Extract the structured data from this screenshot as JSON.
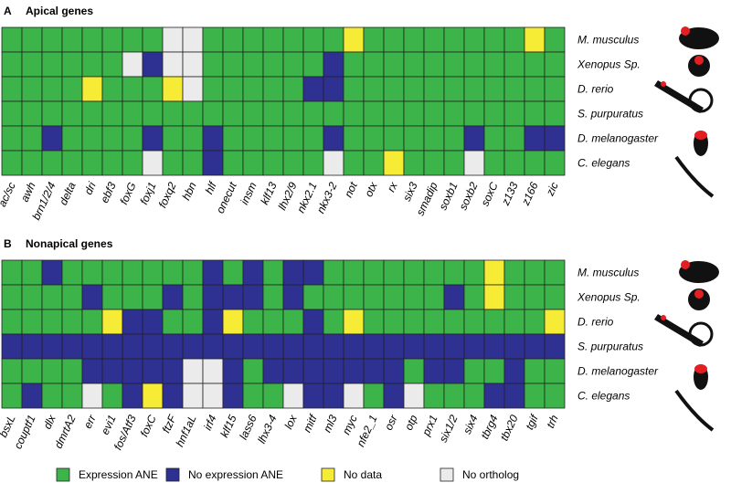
{
  "chart_data": [
    {
      "type": "heatmap",
      "label": "A",
      "title": "Apical genes",
      "x": [
        "ac/sc",
        "awh",
        "brn1/2/4",
        "delta",
        "dri",
        "ebf3",
        "foxG",
        "foxj1",
        "foxq2",
        "hbn",
        "hlf",
        "onecut",
        "insm",
        "klf13",
        "lhx2/9",
        "nkx2.1",
        "nkx3-2",
        "not",
        "otx",
        "rx",
        "six3",
        "smadip",
        "soxb1",
        "soxb2",
        "soxC",
        "z133",
        "z166",
        "zic"
      ],
      "y": [
        "M. musculus",
        "Xenopus Sp.",
        "D. rerio",
        "S. purpuratus",
        "D. melanogaster",
        "C. elegans"
      ],
      "values": [
        [
          0,
          0,
          0,
          0,
          0,
          0,
          0,
          0,
          3,
          3,
          0,
          0,
          0,
          0,
          0,
          0,
          0,
          2,
          0,
          0,
          0,
          0,
          0,
          0,
          0,
          0,
          2,
          0
        ],
        [
          0,
          0,
          0,
          0,
          0,
          0,
          3,
          1,
          3,
          3,
          0,
          0,
          0,
          0,
          0,
          0,
          1,
          0,
          0,
          0,
          0,
          0,
          0,
          0,
          0,
          0,
          0,
          0
        ],
        [
          0,
          0,
          0,
          0,
          2,
          0,
          0,
          0,
          2,
          3,
          0,
          0,
          0,
          0,
          0,
          1,
          1,
          0,
          0,
          0,
          0,
          0,
          0,
          0,
          0,
          0,
          0,
          0
        ],
        [
          0,
          0,
          0,
          0,
          0,
          0,
          0,
          0,
          0,
          0,
          0,
          0,
          0,
          0,
          0,
          0,
          0,
          0,
          0,
          0,
          0,
          0,
          0,
          0,
          0,
          0,
          0,
          0
        ],
        [
          0,
          0,
          1,
          0,
          0,
          0,
          0,
          1,
          0,
          0,
          1,
          0,
          0,
          0,
          0,
          0,
          1,
          0,
          0,
          0,
          0,
          0,
          0,
          1,
          0,
          0,
          1,
          1
        ],
        [
          0,
          0,
          0,
          0,
          0,
          0,
          0,
          3,
          0,
          0,
          1,
          0,
          0,
          0,
          0,
          0,
          3,
          0,
          0,
          2,
          0,
          0,
          0,
          3,
          0,
          0,
          0,
          0
        ]
      ]
    },
    {
      "type": "heatmap",
      "label": "B",
      "title": "Nonapical genes",
      "x": [
        "bsxL",
        "couptf1",
        "dlx",
        "dmrtA2",
        "err",
        "evi1",
        "fos/Atf3",
        "foxC",
        "ftzF",
        "hnf1aL",
        "irf4",
        "klf15",
        "lass6",
        "lhx3-4",
        "lox",
        "mitf",
        "ml3",
        "myc",
        "nfe2_1",
        "osr",
        "otp",
        "prx1",
        "six1/2",
        "six4",
        "tbrg4",
        "tbx20",
        "tgif",
        "trh"
      ],
      "y": [
        "M. musculus",
        "Xenopus Sp.",
        "D. rerio",
        "S. purpuratus",
        "D. melanogaster",
        "C. elegans"
      ],
      "values": [
        [
          0,
          0,
          1,
          0,
          0,
          0,
          0,
          0,
          0,
          0,
          1,
          0,
          1,
          0,
          1,
          1,
          0,
          0,
          0,
          0,
          0,
          0,
          0,
          0,
          2,
          0,
          0,
          0
        ],
        [
          0,
          0,
          0,
          0,
          1,
          0,
          0,
          0,
          1,
          0,
          1,
          1,
          1,
          0,
          1,
          0,
          0,
          0,
          0,
          0,
          0,
          0,
          1,
          0,
          2,
          0,
          0,
          0
        ],
        [
          0,
          0,
          0,
          0,
          0,
          2,
          1,
          1,
          0,
          0,
          1,
          2,
          0,
          0,
          0,
          1,
          0,
          2,
          0,
          0,
          0,
          0,
          0,
          0,
          0,
          0,
          0,
          2
        ],
        [
          1,
          1,
          1,
          1,
          1,
          1,
          1,
          1,
          1,
          1,
          1,
          1,
          1,
          1,
          1,
          1,
          1,
          1,
          1,
          1,
          1,
          1,
          1,
          1,
          1,
          1,
          1,
          1
        ],
        [
          0,
          0,
          0,
          0,
          1,
          1,
          1,
          1,
          1,
          3,
          3,
          1,
          0,
          1,
          1,
          1,
          1,
          1,
          1,
          1,
          0,
          1,
          1,
          0,
          0,
          1,
          0,
          0
        ],
        [
          0,
          1,
          0,
          0,
          3,
          0,
          1,
          2,
          1,
          3,
          3,
          1,
          0,
          0,
          3,
          1,
          1,
          3,
          0,
          1,
          3,
          0,
          0,
          0,
          1,
          1,
          0,
          0
        ]
      ]
    }
  ],
  "legend": [
    {
      "name": "Expression ANE",
      "color": "#3cb44a"
    },
    {
      "name": "No expression ANE",
      "color": "#2e3192"
    },
    {
      "name": "No data",
      "color": "#f7ec35"
    },
    {
      "name": "No ortholog",
      "color": "#ebebeb"
    }
  ]
}
